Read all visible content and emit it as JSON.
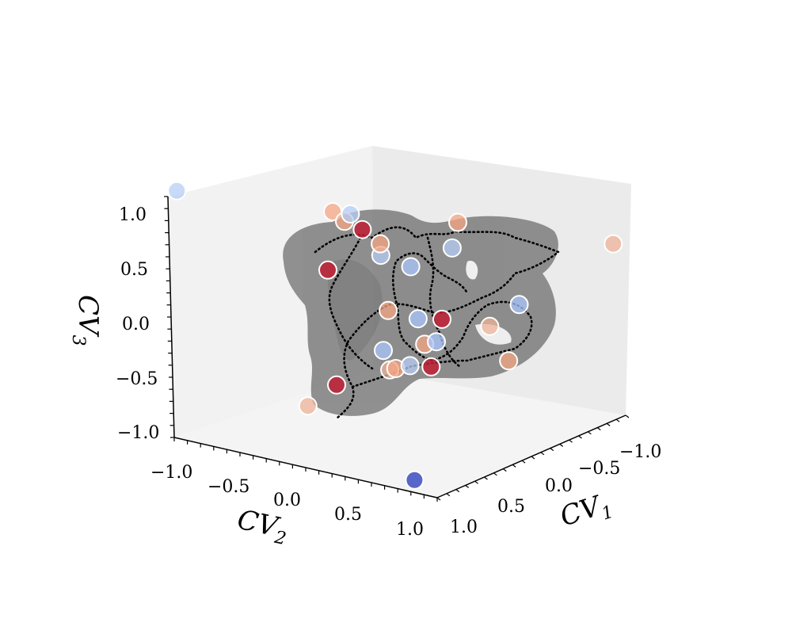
{
  "chart_data": {
    "type": "scatter",
    "projection": "3d",
    "title": "",
    "axes": {
      "x": {
        "label": "CV",
        "label_sub": "1",
        "ticks": [
          "−1.0",
          "−0.5",
          "0.0",
          "0.5",
          "1.0"
        ],
        "tick_values": [
          -1.0,
          -0.5,
          0.0,
          0.5,
          1.0
        ],
        "range": [
          -1.0,
          1.0
        ]
      },
      "y": {
        "label": "CV",
        "label_sub": "2",
        "ticks": [
          "−1.0",
          "−0.5",
          "0.0",
          "0.5",
          "1.0"
        ],
        "tick_values": [
          -1.0,
          -0.5,
          0.0,
          0.5,
          1.0
        ],
        "range": [
          -1.0,
          1.0
        ]
      },
      "z": {
        "label": "CV",
        "label_sub": "3",
        "ticks": [
          "1.0",
          "0.5",
          "0.0",
          "−0.5",
          "−1.0"
        ],
        "tick_values": [
          1.0,
          0.5,
          0.0,
          -0.5,
          -1.0
        ],
        "range": [
          -1.0,
          1.0
        ]
      }
    },
    "grid": false,
    "legend": "none",
    "colormap": "coolwarm",
    "surface": {
      "type": "isosurface",
      "color": "#5a5a5a",
      "opacity": 0.65
    },
    "trajectory": {
      "style": "dotted",
      "color": "#000000"
    },
    "points": [
      {
        "x": 0.95,
        "y": -0.95,
        "z": 0.95,
        "c": 0.35
      },
      {
        "x": -0.9,
        "y": -0.9,
        "z": -0.95,
        "c": 0.35
      },
      {
        "x": 0.3,
        "y": -0.55,
        "z": -0.9,
        "c": 0.65
      },
      {
        "x": 0.9,
        "y": 0.95,
        "z": -0.95,
        "c": 0.0
      },
      {
        "x": -0.95,
        "y": 0.8,
        "z": 0.55,
        "c": 0.65
      },
      {
        "x": -0.3,
        "y": 0.15,
        "z": 0.7,
        "c": 0.7
      },
      {
        "x": 0.2,
        "y": -0.3,
        "z": 0.7,
        "c": 0.7
      },
      {
        "x": 0.1,
        "y": -0.5,
        "z": 0.7,
        "c": 0.7
      },
      {
        "x": 0.15,
        "y": -0.3,
        "z": 0.75,
        "c": 0.35
      },
      {
        "x": 0.25,
        "y": -0.1,
        "z": 0.7,
        "c": 0.95
      },
      {
        "x": 0.3,
        "y": 0.1,
        "z": 0.65,
        "c": 0.7
      },
      {
        "x": -0.15,
        "y": 0.25,
        "z": 0.55,
        "c": 0.35
      },
      {
        "x": 0.2,
        "y": 0.0,
        "z": 0.5,
        "c": 0.35
      },
      {
        "x": 0.15,
        "y": 0.2,
        "z": 0.45,
        "c": 0.3
      },
      {
        "x": 0.3,
        "y": -0.35,
        "z": 0.3,
        "c": 0.95
      },
      {
        "x": 0.2,
        "y": 0.05,
        "z": 0.05,
        "c": 0.7
      },
      {
        "x": 0.1,
        "y": 0.2,
        "z": 0.0,
        "c": 0.3
      },
      {
        "x": 0.0,
        "y": 0.3,
        "z": 0.0,
        "c": 0.95
      },
      {
        "x": -0.4,
        "y": 0.55,
        "z": 0.1,
        "c": 0.3
      },
      {
        "x": -0.2,
        "y": 0.5,
        "z": -0.05,
        "c": 0.65
      },
      {
        "x": 0.1,
        "y": 0.35,
        "z": -0.15,
        "c": 0.3
      },
      {
        "x": 0.1,
        "y": 0.25,
        "z": -0.2,
        "c": 0.7
      },
      {
        "x": 0.2,
        "y": 0.0,
        "z": -0.3,
        "c": 0.3
      },
      {
        "x": 0.15,
        "y": 0.35,
        "z": -0.35,
        "c": 0.95
      },
      {
        "x": -0.3,
        "y": 0.55,
        "z": -0.35,
        "c": 0.7
      },
      {
        "x": 0.15,
        "y": 0.05,
        "z": -0.45,
        "c": 0.7
      },
      {
        "x": 0.2,
        "y": 0.05,
        "z": -0.45,
        "c": 0.65
      },
      {
        "x": 0.4,
        "y": -0.2,
        "z": -0.6,
        "c": 0.95
      }
    ]
  }
}
